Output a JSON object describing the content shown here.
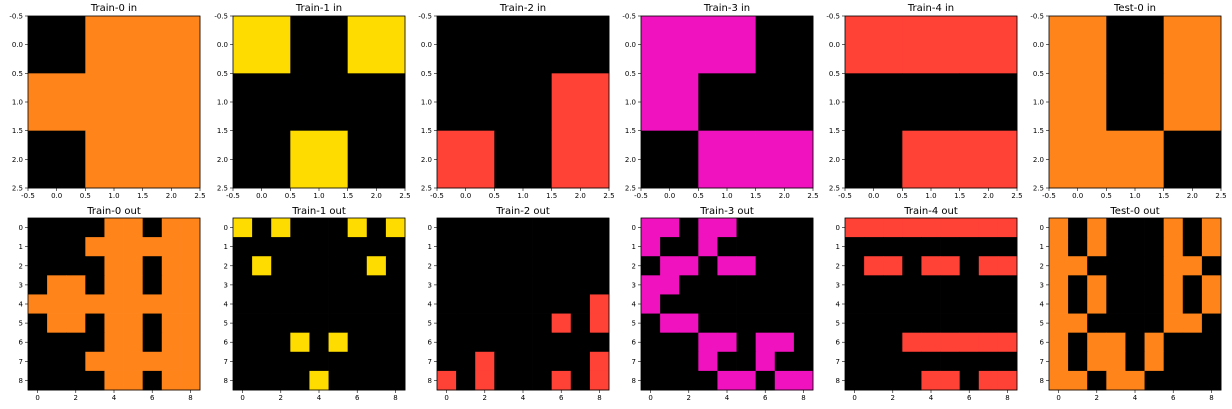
{
  "palette": {
    "0": "#000000",
    "2": "#FF4136",
    "4": "#FFDC00",
    "6": "#F012BE",
    "7": "#FF851B"
  },
  "chart_data": [
    {
      "type": "heatmap",
      "title": "Train-0 in",
      "grid": [
        [
          0,
          7,
          7
        ],
        [
          7,
          7,
          7
        ],
        [
          0,
          7,
          7
        ]
      ]
    },
    {
      "type": "heatmap",
      "title": "Train-1 in",
      "grid": [
        [
          4,
          0,
          4
        ],
        [
          0,
          0,
          0
        ],
        [
          0,
          4,
          0
        ]
      ]
    },
    {
      "type": "heatmap",
      "title": "Train-2 in",
      "grid": [
        [
          0,
          0,
          0
        ],
        [
          0,
          0,
          2
        ],
        [
          2,
          0,
          2
        ]
      ]
    },
    {
      "type": "heatmap",
      "title": "Train-3 in",
      "grid": [
        [
          6,
          6,
          0
        ],
        [
          6,
          0,
          0
        ],
        [
          0,
          6,
          6
        ]
      ]
    },
    {
      "type": "heatmap",
      "title": "Train-4 in",
      "grid": [
        [
          2,
          2,
          2
        ],
        [
          0,
          0,
          0
        ],
        [
          0,
          2,
          2
        ]
      ]
    },
    {
      "type": "heatmap",
      "title": "Test-0 in",
      "grid": [
        [
          7,
          0,
          7
        ],
        [
          7,
          0,
          7
        ],
        [
          7,
          7,
          0
        ]
      ]
    },
    {
      "type": "heatmap",
      "title": "Train-0 out",
      "grid": [
        [
          0,
          0,
          0,
          0,
          7,
          7,
          0,
          7,
          7
        ],
        [
          0,
          0,
          0,
          7,
          7,
          7,
          7,
          7,
          7
        ],
        [
          0,
          0,
          0,
          0,
          7,
          7,
          0,
          7,
          7
        ],
        [
          0,
          7,
          7,
          0,
          7,
          7,
          0,
          7,
          7
        ],
        [
          7,
          7,
          7,
          7,
          7,
          7,
          7,
          7,
          7
        ],
        [
          0,
          7,
          7,
          0,
          7,
          7,
          0,
          7,
          7
        ],
        [
          0,
          0,
          0,
          0,
          7,
          7,
          0,
          7,
          7
        ],
        [
          0,
          0,
          0,
          7,
          7,
          7,
          7,
          7,
          7
        ],
        [
          0,
          0,
          0,
          0,
          7,
          7,
          0,
          7,
          7
        ]
      ]
    },
    {
      "type": "heatmap",
      "title": "Train-1 out",
      "grid": [
        [
          4,
          0,
          4,
          0,
          0,
          0,
          4,
          0,
          4
        ],
        [
          0,
          0,
          0,
          0,
          0,
          0,
          0,
          0,
          0
        ],
        [
          0,
          4,
          0,
          0,
          0,
          0,
          0,
          4,
          0
        ],
        [
          0,
          0,
          0,
          0,
          0,
          0,
          0,
          0,
          0
        ],
        [
          0,
          0,
          0,
          0,
          0,
          0,
          0,
          0,
          0
        ],
        [
          0,
          0,
          0,
          0,
          0,
          0,
          0,
          0,
          0
        ],
        [
          0,
          0,
          0,
          4,
          0,
          4,
          0,
          0,
          0
        ],
        [
          0,
          0,
          0,
          0,
          0,
          0,
          0,
          0,
          0
        ],
        [
          0,
          0,
          0,
          0,
          4,
          0,
          0,
          0,
          0
        ]
      ]
    },
    {
      "type": "heatmap",
      "title": "Train-2 out",
      "grid": [
        [
          0,
          0,
          0,
          0,
          0,
          0,
          0,
          0,
          0
        ],
        [
          0,
          0,
          0,
          0,
          0,
          0,
          0,
          0,
          0
        ],
        [
          0,
          0,
          0,
          0,
          0,
          0,
          0,
          0,
          0
        ],
        [
          0,
          0,
          0,
          0,
          0,
          0,
          0,
          0,
          0
        ],
        [
          0,
          0,
          0,
          0,
          0,
          0,
          0,
          0,
          2
        ],
        [
          0,
          0,
          0,
          0,
          0,
          0,
          2,
          0,
          2
        ],
        [
          0,
          0,
          0,
          0,
          0,
          0,
          0,
          0,
          0
        ],
        [
          0,
          0,
          2,
          0,
          0,
          0,
          0,
          0,
          2
        ],
        [
          2,
          0,
          2,
          0,
          0,
          0,
          2,
          0,
          2
        ]
      ]
    },
    {
      "type": "heatmap",
      "title": "Train-3 out",
      "grid": [
        [
          6,
          6,
          0,
          6,
          6,
          0,
          0,
          0,
          0
        ],
        [
          6,
          0,
          0,
          6,
          0,
          0,
          0,
          0,
          0
        ],
        [
          0,
          6,
          6,
          0,
          6,
          6,
          0,
          0,
          0
        ],
        [
          6,
          6,
          0,
          0,
          0,
          0,
          0,
          0,
          0
        ],
        [
          6,
          0,
          0,
          0,
          0,
          0,
          0,
          0,
          0
        ],
        [
          0,
          6,
          6,
          0,
          0,
          0,
          0,
          0,
          0
        ],
        [
          0,
          0,
          0,
          6,
          6,
          0,
          6,
          6,
          0
        ],
        [
          0,
          0,
          0,
          6,
          0,
          0,
          6,
          0,
          0
        ],
        [
          0,
          0,
          0,
          0,
          6,
          6,
          0,
          6,
          6
        ]
      ]
    },
    {
      "type": "heatmap",
      "title": "Train-4 out",
      "grid": [
        [
          2,
          2,
          2,
          2,
          2,
          2,
          2,
          2,
          2
        ],
        [
          0,
          0,
          0,
          0,
          0,
          0,
          0,
          0,
          0
        ],
        [
          0,
          2,
          2,
          0,
          2,
          2,
          0,
          2,
          2
        ],
        [
          0,
          0,
          0,
          0,
          0,
          0,
          0,
          0,
          0
        ],
        [
          0,
          0,
          0,
          0,
          0,
          0,
          0,
          0,
          0
        ],
        [
          0,
          0,
          0,
          0,
          0,
          0,
          0,
          0,
          0
        ],
        [
          0,
          0,
          0,
          2,
          2,
          2,
          2,
          2,
          2
        ],
        [
          0,
          0,
          0,
          0,
          0,
          0,
          0,
          0,
          0
        ],
        [
          0,
          0,
          0,
          0,
          2,
          2,
          0,
          2,
          2
        ]
      ]
    },
    {
      "type": "heatmap",
      "title": "Test-0 out",
      "grid": [
        [
          7,
          0,
          7,
          0,
          0,
          0,
          7,
          0,
          7
        ],
        [
          7,
          0,
          7,
          0,
          0,
          0,
          7,
          0,
          7
        ],
        [
          7,
          7,
          0,
          0,
          0,
          0,
          7,
          7,
          0
        ],
        [
          7,
          0,
          7,
          0,
          0,
          0,
          7,
          0,
          7
        ],
        [
          7,
          0,
          7,
          0,
          0,
          0,
          7,
          0,
          7
        ],
        [
          7,
          7,
          0,
          0,
          0,
          0,
          7,
          7,
          0
        ],
        [
          7,
          0,
          7,
          7,
          0,
          7,
          0,
          0,
          0
        ],
        [
          7,
          0,
          7,
          7,
          0,
          7,
          0,
          0,
          0
        ],
        [
          7,
          7,
          0,
          7,
          7,
          0,
          0,
          0,
          0
        ]
      ]
    }
  ],
  "axes_small": {
    "x_ticks": [
      "-0.5",
      "0.0",
      "0.5",
      "1.0",
      "1.5",
      "2.0",
      "2.5"
    ],
    "y_ticks": [
      "-0.5",
      "0.0",
      "0.5",
      "1.0",
      "1.5",
      "2.0",
      "2.5"
    ],
    "tick_values": [
      -0.5,
      0.0,
      0.5,
      1.0,
      1.5,
      2.0,
      2.5
    ]
  },
  "axes_large": {
    "x_ticks": [
      "0",
      "2",
      "4",
      "6",
      "8"
    ],
    "y_ticks": [
      "0",
      "1",
      "2",
      "3",
      "4",
      "5",
      "6",
      "7",
      "8"
    ],
    "x_tick_values": [
      0,
      2,
      4,
      6,
      8
    ],
    "y_tick_values": [
      0,
      1,
      2,
      3,
      4,
      5,
      6,
      7,
      8
    ]
  }
}
